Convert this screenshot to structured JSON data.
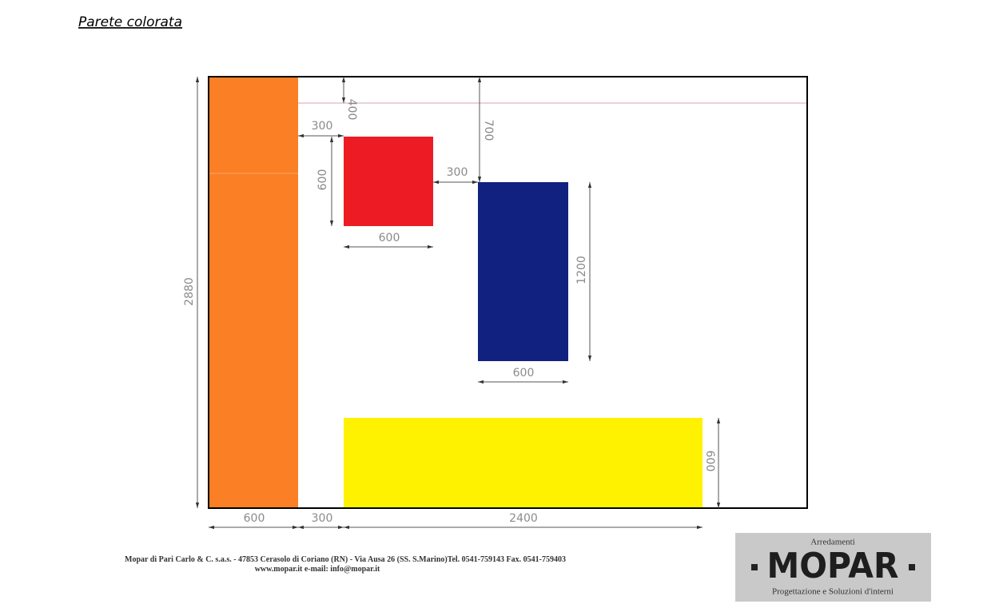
{
  "title": "Parete colorata",
  "dimensions": [
    "2880",
    "400",
    "300",
    "600",
    "600",
    "300",
    "700",
    "1200",
    "600",
    "600",
    "600",
    "300",
    "2400"
  ],
  "footer": {
    "line1": "Mopar di Pari Carlo & C. s.a.s. - 47853 Cerasolo di Coriano (RN) - Via Ausa 26 (SS. S.Marino)Tel. 0541-759143 Fax. 0541-759403",
    "line2": "www.mopar.it e-mail: info@mopar.it"
  },
  "logo": {
    "top": "Arredamenti",
    "name": "MOPAR",
    "bottom": "Progettazione e Soluzioni d'interni"
  }
}
